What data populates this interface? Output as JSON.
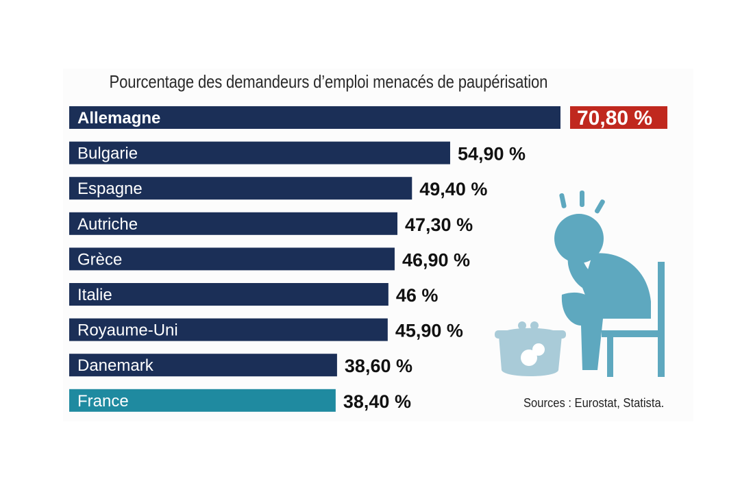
{
  "chart_data": {
    "type": "bar",
    "orientation": "horizontal",
    "title": "Pourcentage des demandeurs d’emploi menacés de paupérisation",
    "categories": [
      "Allemagne",
      "Bulgarie",
      "Espagne",
      "Autriche",
      "Grèce",
      "Italie",
      "Royaume-Uni",
      "Danemark",
      "France"
    ],
    "values": [
      70.8,
      54.9,
      49.4,
      47.3,
      46.9,
      46.0,
      45.9,
      38.6,
      38.4
    ],
    "value_labels": [
      "70,80 %",
      "54,90 %",
      "49,40 %",
      "47,30 %",
      "46,90 %",
      "46 %",
      "45,90 %",
      "38,60 %",
      "38,40 %"
    ],
    "highlight_first": "Allemagne",
    "highlight_country": "France",
    "xlim": [
      0,
      70.8
    ]
  },
  "colors": {
    "bar": "#1b2f57",
    "bar_highlight": "#1f8aa0",
    "value_highlight_bg": "#c0281e",
    "illustration": "#5ea8bf",
    "purse": "#a9cbd8"
  },
  "illustration_icon": "worried-person-with-purse-icon",
  "source": "Sources : Eurostat, Statista."
}
